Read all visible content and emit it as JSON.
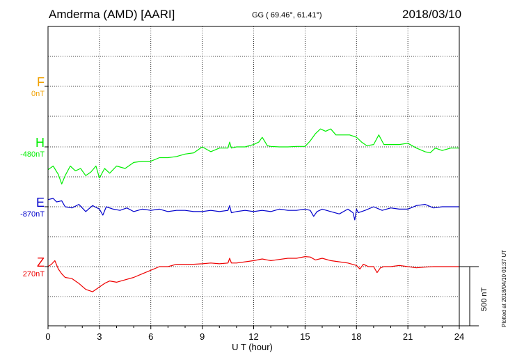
{
  "header": {
    "station": "Amderma (AMD)  [AARI]",
    "coordinates": "GG ( 69.46°,  61.41°)",
    "date": "2018/03/10"
  },
  "footer": {
    "plotted": "Plotted at 2018/04/10 01:37 UT"
  },
  "chart_data": {
    "type": "line",
    "xlabel": "U T (hour)",
    "xlim": [
      0,
      24
    ],
    "x_ticks": [
      0,
      3,
      6,
      9,
      12,
      15,
      18,
      21,
      24
    ],
    "grid": true,
    "scale_bar": {
      "label": "500 nT",
      "value_nT": 500
    },
    "components": [
      {
        "letter": "F",
        "offset_label": "0nT",
        "color": "#f0a000",
        "baseline_nT": 0
      },
      {
        "letter": "H",
        "offset_label": "-480nT",
        "color": "#00ee00",
        "baseline_nT": -480
      },
      {
        "letter": "E",
        "offset_label": "-870nT",
        "color": "#0000cc",
        "baseline_nT": -870
      },
      {
        "letter": "Z",
        "offset_label": "270nT",
        "color": "#ee0000",
        "baseline_nT": 270
      }
    ],
    "series": [
      {
        "name": "H",
        "color": "#00ee00",
        "x": [
          0,
          0.3,
          0.6,
          0.8,
          1.0,
          1.3,
          1.6,
          1.9,
          2.2,
          2.5,
          2.8,
          3.0,
          3.3,
          3.6,
          4.0,
          4.5,
          5.0,
          5.5,
          6.0,
          6.5,
          7.0,
          7.5,
          8.0,
          8.5,
          9.0,
          9.5,
          10.0,
          10.5,
          10.6,
          10.7,
          11.0,
          11.5,
          12.0,
          12.3,
          12.5,
          12.8,
          13.0,
          13.5,
          14.0,
          14.5,
          15.0,
          15.3,
          15.6,
          15.9,
          16.2,
          16.5,
          16.8,
          17.2,
          17.6,
          18.0,
          18.3,
          18.6,
          19.0,
          19.3,
          19.6,
          20.0,
          20.5,
          21.0,
          21.5,
          22.0,
          22.3,
          22.6,
          23.0,
          23.5,
          24.0
        ],
        "y": [
          -575,
          -560,
          -595,
          -635,
          -600,
          -560,
          -580,
          -570,
          -600,
          -585,
          -560,
          -610,
          -570,
          -590,
          -560,
          -570,
          -545,
          -540,
          -540,
          -525,
          -525,
          -520,
          -510,
          -505,
          -480,
          -500,
          -485,
          -485,
          -460,
          -485,
          -480,
          -480,
          -470,
          -460,
          -440,
          -475,
          -478,
          -480,
          -480,
          -478,
          -478,
          -455,
          -425,
          -405,
          -415,
          -405,
          -430,
          -430,
          -430,
          -440,
          -460,
          -475,
          -470,
          -430,
          -470,
          -470,
          -470,
          -465,
          -485,
          -500,
          -505,
          -485,
          -495,
          -485,
          -485
        ]
      },
      {
        "name": "E",
        "color": "#0000cc",
        "x": [
          0,
          0.3,
          0.5,
          0.8,
          1.0,
          1.4,
          1.8,
          2.2,
          2.6,
          3.0,
          3.2,
          3.4,
          3.8,
          4.2,
          4.6,
          5.0,
          5.5,
          6.0,
          6.5,
          7.0,
          7.5,
          8.0,
          8.5,
          9.0,
          9.5,
          10.0,
          10.5,
          10.6,
          10.7,
          11.0,
          11.5,
          12.0,
          12.5,
          13.0,
          13.5,
          14.0,
          14.5,
          15.0,
          15.3,
          15.5,
          15.7,
          16.0,
          16.5,
          17.0,
          17.5,
          17.8,
          17.9,
          18.0,
          18.1,
          18.5,
          19.0,
          19.5,
          20.0,
          20.5,
          21.0,
          21.5,
          22.0,
          22.5,
          23.0,
          23.5,
          24.0
        ],
        "y": [
          -840,
          -835,
          -850,
          -845,
          -870,
          -875,
          -860,
          -890,
          -865,
          -880,
          -905,
          -870,
          -880,
          -885,
          -875,
          -890,
          -880,
          -885,
          -880,
          -890,
          -885,
          -885,
          -890,
          -890,
          -885,
          -890,
          -885,
          -865,
          -895,
          -890,
          -885,
          -890,
          -885,
          -890,
          -880,
          -885,
          -885,
          -880,
          -885,
          -910,
          -890,
          -880,
          -890,
          -900,
          -880,
          -895,
          -925,
          -880,
          -895,
          -885,
          -870,
          -885,
          -875,
          -880,
          -880,
          -865,
          -860,
          -875,
          -870,
          -870,
          -870
        ]
      },
      {
        "name": "Z",
        "color": "#ee0000",
        "x": [
          0,
          0.2,
          0.4,
          0.6,
          0.8,
          1.0,
          1.4,
          1.8,
          2.2,
          2.6,
          3.0,
          3.3,
          3.6,
          4.0,
          4.5,
          5.0,
          5.5,
          6.0,
          6.5,
          7.0,
          7.5,
          8.0,
          8.5,
          9.0,
          9.5,
          10.0,
          10.5,
          10.6,
          10.7,
          11.0,
          11.5,
          12.0,
          12.5,
          13.0,
          13.5,
          14.0,
          14.5,
          15.0,
          15.3,
          15.6,
          16.0,
          16.5,
          17.0,
          17.5,
          18.0,
          18.2,
          18.4,
          18.7,
          19.0,
          19.2,
          19.4,
          19.6,
          20.0,
          20.5,
          21.0,
          21.5,
          22.0,
          22.5,
          23.0,
          23.5,
          24.0
        ],
        "y": [
          270,
          280,
          295,
          260,
          240,
          225,
          220,
          200,
          175,
          165,
          185,
          200,
          210,
          205,
          215,
          225,
          240,
          255,
          270,
          270,
          280,
          280,
          280,
          282,
          285,
          282,
          285,
          305,
          285,
          285,
          290,
          295,
          302,
          295,
          300,
          305,
          305,
          312,
          310,
          298,
          305,
          295,
          290,
          285,
          275,
          260,
          280,
          270,
          270,
          245,
          265,
          270,
          270,
          275,
          270,
          265,
          268,
          270,
          270,
          270,
          270
        ]
      }
    ]
  }
}
